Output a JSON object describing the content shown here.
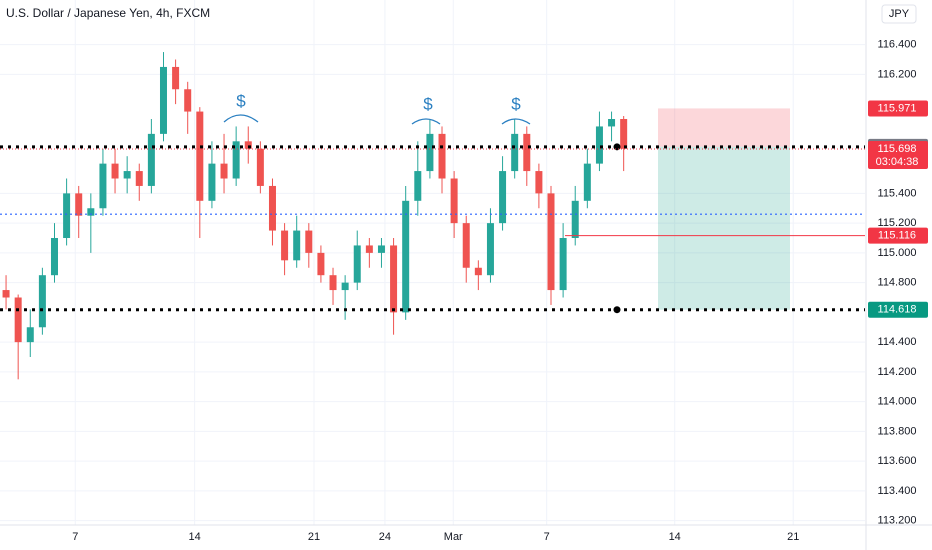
{
  "chart_data": {
    "type": "candlestick",
    "title": "U.S. Dollar / Japanese Yen, 4h, FXCM",
    "currency": "JPY",
    "up_color": "#26a69a",
    "down_color": "#ef5350",
    "grid": true,
    "x": [
      0.7,
      2.1,
      3.5,
      4.9,
      6.3,
      7.7,
      9.1,
      10.5,
      11.9,
      13.3,
      14.7,
      16.1,
      17.5,
      18.9,
      20.3,
      21.7,
      23.1,
      24.5,
      25.9,
      27.3,
      28.7,
      30.1,
      31.5,
      32.9,
      34.3,
      35.7,
      37.1,
      38.5,
      39.9,
      41.3,
      42.7,
      44.1,
      45.5,
      46.9,
      48.3,
      49.7,
      51.1,
      52.5,
      53.9,
      55.3,
      56.7,
      58.1,
      59.5,
      60.9,
      62.3,
      63.7,
      65.1,
      66.5,
      67.9,
      69.3,
      70.7,
      72.1
    ],
    "open": [
      114.75,
      114.7,
      114.4,
      114.5,
      114.85,
      115.1,
      115.4,
      115.25,
      115.3,
      115.6,
      115.5,
      115.55,
      115.45,
      115.8,
      116.25,
      116.1,
      115.95,
      115.35,
      115.6,
      115.5,
      115.75,
      115.7,
      115.45,
      115.15,
      114.95,
      115.15,
      115.0,
      114.85,
      114.75,
      114.8,
      115.05,
      115.0,
      115.05,
      114.6,
      115.35,
      115.55,
      115.8,
      115.5,
      115.2,
      114.9,
      114.85,
      115.2,
      115.55,
      115.8,
      115.55,
      115.4,
      114.75,
      115.1,
      115.35,
      115.6,
      115.85,
      115.9
    ],
    "high": [
      114.85,
      114.72,
      114.62,
      114.9,
      115.2,
      115.5,
      115.45,
      115.4,
      115.7,
      115.7,
      115.65,
      115.6,
      115.9,
      116.35,
      116.3,
      116.15,
      115.98,
      115.75,
      115.8,
      115.85,
      115.85,
      115.75,
      115.5,
      115.2,
      115.25,
      115.2,
      115.05,
      114.9,
      114.85,
      115.15,
      115.1,
      115.1,
      115.1,
      115.45,
      115.75,
      115.9,
      115.85,
      115.55,
      115.25,
      114.95,
      115.3,
      115.65,
      115.9,
      115.85,
      115.6,
      115.45,
      115.2,
      115.45,
      115.7,
      115.95,
      115.95,
      115.92
    ],
    "low": [
      114.62,
      114.15,
      114.3,
      114.45,
      114.8,
      115.05,
      115.1,
      115.0,
      115.25,
      115.4,
      115.4,
      115.35,
      115.4,
      115.75,
      116.0,
      115.8,
      115.1,
      115.3,
      115.4,
      115.45,
      115.6,
      115.4,
      115.05,
      114.85,
      114.9,
      114.9,
      114.8,
      114.65,
      114.55,
      114.75,
      114.9,
      114.9,
      114.45,
      114.55,
      115.25,
      115.5,
      115.4,
      115.1,
      114.8,
      114.75,
      114.8,
      115.15,
      115.5,
      115.45,
      115.3,
      114.65,
      114.7,
      115.05,
      115.3,
      115.55,
      115.75,
      115.55
    ],
    "close": [
      114.7,
      114.4,
      114.5,
      114.85,
      115.1,
      115.4,
      115.25,
      115.3,
      115.6,
      115.5,
      115.55,
      115.45,
      115.8,
      116.25,
      116.1,
      115.95,
      115.35,
      115.6,
      115.5,
      115.75,
      115.7,
      115.45,
      115.15,
      114.95,
      115.15,
      115.0,
      114.85,
      114.75,
      114.8,
      115.05,
      115.0,
      115.05,
      114.6,
      115.35,
      115.55,
      115.8,
      115.5,
      115.2,
      114.9,
      114.85,
      115.2,
      115.55,
      115.8,
      115.55,
      115.4,
      114.75,
      115.1,
      115.35,
      115.6,
      115.85,
      115.9,
      115.7
    ],
    "xlim": [
      0,
      100
    ],
    "ylim": [
      113.09,
      116.7
    ],
    "xticks": [
      {
        "value": 8.7,
        "label": "7"
      },
      {
        "value": 22.5,
        "label": "14"
      },
      {
        "value": 36.3,
        "label": "21"
      },
      {
        "value": 44.5,
        "label": "24"
      },
      {
        "value": 52.4,
        "label": "Mar"
      },
      {
        "value": 63.2,
        "label": "7"
      },
      {
        "value": 78,
        "label": "14"
      },
      {
        "value": 91.7,
        "label": "21"
      }
    ],
    "yticks": [
      {
        "value": 113.2,
        "label": "113.200"
      },
      {
        "value": 113.4,
        "label": "113.400"
      },
      {
        "value": 113.6,
        "label": "113.600"
      },
      {
        "value": 113.8,
        "label": "113.800"
      },
      {
        "value": 114.0,
        "label": "114.000"
      },
      {
        "value": 114.2,
        "label": "114.200"
      },
      {
        "value": 114.4,
        "label": "114.400"
      },
      {
        "value": 114.8,
        "label": "114.800"
      },
      {
        "value": 115.0,
        "label": "115.000"
      },
      {
        "value": 115.2,
        "label": "115.200"
      },
      {
        "value": 115.4,
        "label": "115.400"
      },
      {
        "value": 116.2,
        "label": "116.200"
      },
      {
        "value": 116.4,
        "label": "116.400"
      }
    ],
    "levels": [
      {
        "value": 115.971,
        "color": "#f23645"
      },
      {
        "value": 115.713,
        "color": "#787b86"
      },
      {
        "value": 115.698,
        "color": "#f23645",
        "countdown": "03:04:38"
      },
      {
        "value": 115.116,
        "color": "#f23645"
      },
      {
        "value": 114.618,
        "color": "#089981"
      }
    ],
    "blue_line": 115.26,
    "annotations": [
      "$",
      "$",
      "$"
    ]
  }
}
